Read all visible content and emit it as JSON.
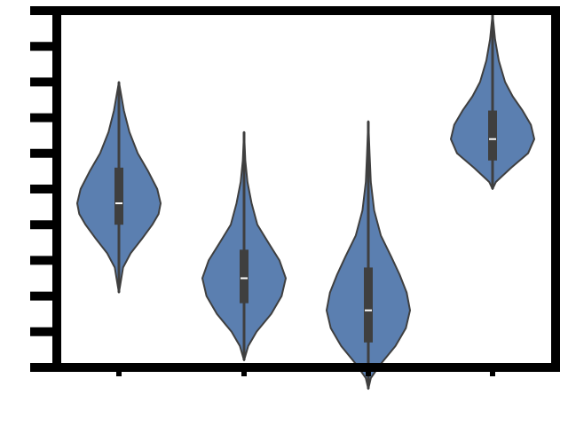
{
  "chart_data": {
    "type": "violin",
    "title": "",
    "xlabel": "",
    "ylabel": "",
    "categories": [
      "",
      "",
      "",
      ""
    ],
    "ylim": [
      0,
      10
    ],
    "grid": false,
    "colors": {
      "fill": "#5b7fb0",
      "stroke": "#3f3f3f",
      "axis": "#000000",
      "box": "#3f3f3f",
      "median": "#ffffff"
    },
    "violins": [
      {
        "min": 2.1,
        "max": 8.0,
        "q1": 4.0,
        "median": 4.6,
        "q3": 5.6,
        "shape": [
          [
            2.1,
            0.0
          ],
          [
            2.3,
            0.03
          ],
          [
            2.8,
            0.1
          ],
          [
            3.2,
            0.28
          ],
          [
            3.6,
            0.55
          ],
          [
            4.0,
            0.8
          ],
          [
            4.3,
            0.95
          ],
          [
            4.6,
            1.0
          ],
          [
            5.0,
            0.92
          ],
          [
            5.5,
            0.7
          ],
          [
            6.0,
            0.45
          ],
          [
            6.6,
            0.25
          ],
          [
            7.2,
            0.12
          ],
          [
            7.6,
            0.06
          ],
          [
            8.0,
            0.0
          ]
        ]
      },
      {
        "min": 0.2,
        "max": 6.6,
        "q1": 1.8,
        "median": 2.5,
        "q3": 3.3,
        "shape": [
          [
            0.2,
            0.0
          ],
          [
            0.6,
            0.1
          ],
          [
            1.0,
            0.3
          ],
          [
            1.5,
            0.65
          ],
          [
            2.0,
            0.9
          ],
          [
            2.5,
            1.0
          ],
          [
            3.0,
            0.85
          ],
          [
            3.5,
            0.58
          ],
          [
            4.0,
            0.32
          ],
          [
            4.6,
            0.18
          ],
          [
            5.2,
            0.08
          ],
          [
            5.8,
            0.03
          ],
          [
            6.6,
            0.0
          ]
        ]
      },
      {
        "min": -0.6,
        "max": 6.9,
        "q1": 0.7,
        "median": 1.6,
        "q3": 2.8,
        "shape": [
          [
            -0.6,
            0.0
          ],
          [
            -0.3,
            0.06
          ],
          [
            0.1,
            0.3
          ],
          [
            0.6,
            0.65
          ],
          [
            1.1,
            0.9
          ],
          [
            1.6,
            1.0
          ],
          [
            2.1,
            0.92
          ],
          [
            2.6,
            0.75
          ],
          [
            3.1,
            0.55
          ],
          [
            3.7,
            0.3
          ],
          [
            4.4,
            0.14
          ],
          [
            5.2,
            0.06
          ],
          [
            6.0,
            0.03
          ],
          [
            6.9,
            0.0
          ]
        ]
      },
      {
        "min": 5.0,
        "max": 9.9,
        "q1": 5.8,
        "median": 6.4,
        "q3": 7.2,
        "shape": [
          [
            5.0,
            0.0
          ],
          [
            5.2,
            0.08
          ],
          [
            5.6,
            0.45
          ],
          [
            6.0,
            0.85
          ],
          [
            6.4,
            1.0
          ],
          [
            6.8,
            0.92
          ],
          [
            7.2,
            0.72
          ],
          [
            7.6,
            0.48
          ],
          [
            8.0,
            0.3
          ],
          [
            8.6,
            0.15
          ],
          [
            9.2,
            0.06
          ],
          [
            9.9,
            0.0
          ]
        ]
      }
    ]
  }
}
